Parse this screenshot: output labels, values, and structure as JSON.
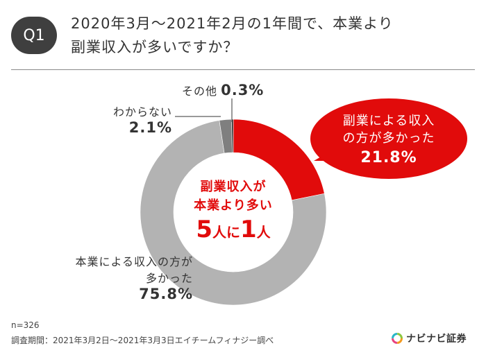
{
  "header": {
    "badge": "Q1",
    "title_line1": "2020年3月～2021年2月の1年間で、本業より",
    "title_line2": "副業収入が多いですか？"
  },
  "chart_data": {
    "type": "pie",
    "variant": "donut",
    "title": "2020年3月～2021年2月の1年間で、本業より副業収入が多いですか？",
    "slices": [
      {
        "label": "副業による収入の方が多かった",
        "value": 21.8,
        "value_label": "21.8%",
        "color": "#e10b0b"
      },
      {
        "label": "本業による収入の方が多かった",
        "value": 75.8,
        "value_label": "75.8%",
        "color": "#b3b3b3"
      },
      {
        "label": "わからない",
        "value": 2.1,
        "value_label": "2.1%",
        "color": "#7f7f7f"
      },
      {
        "label": "その他",
        "value": 0.3,
        "value_label": "0.3%",
        "color": "#2e2e2e"
      }
    ],
    "center_text": {
      "line1": "副業収入が",
      "line2": "本業より多い",
      "num_a": "5",
      "unit_a": "人に",
      "num_b": "1",
      "unit_b": "人"
    }
  },
  "labels": {
    "side_income_l1": "副業による収入",
    "side_income_l2": "の方が多かった",
    "main_income_l1": "本業による収入の方が",
    "main_income_l2": "多かった",
    "unknown": "わからない",
    "other": "その他"
  },
  "footer": {
    "n": "n=326",
    "period": "調査期間：2021年3月2日～2021年3月3日エイチームフィナジー調べ"
  },
  "logo": {
    "text": "ナビナビ証券"
  },
  "colors": {
    "accent": "#e10b0b",
    "main_gray": "#b3b3b3",
    "dark": "#3f3f3f"
  }
}
